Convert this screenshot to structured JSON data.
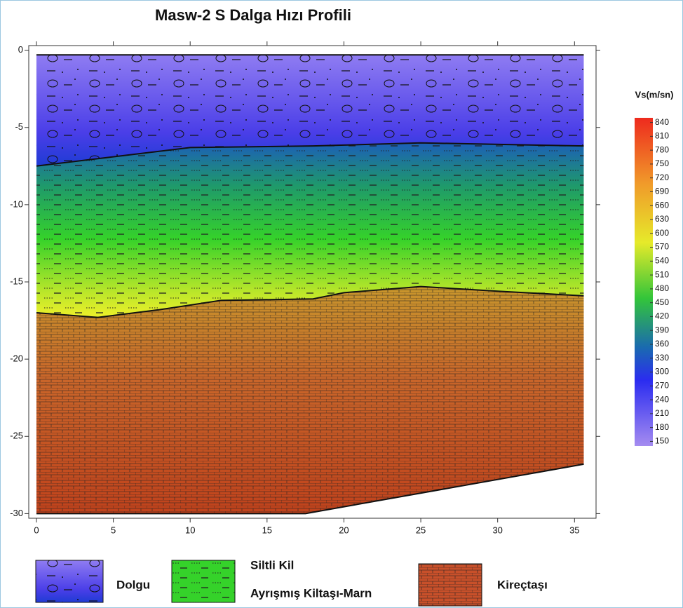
{
  "chart_data": {
    "type": "section",
    "title": "Masw-2 S Dalga Hızı Profili",
    "xlim": [
      -0.5,
      36.4
    ],
    "xticks": [
      0,
      5,
      10,
      15,
      20,
      25,
      30,
      35
    ],
    "ylim": [
      -30.3,
      0.3
    ],
    "yticks": [
      0,
      -5,
      -10,
      -15,
      -20,
      -25,
      -30
    ],
    "boundaries": [
      {
        "x": [
          0,
          35.6
        ],
        "y": [
          -0.3,
          -0.3
        ]
      },
      {
        "x": [
          0,
          10,
          18,
          25,
          35.6
        ],
        "y": [
          -7.5,
          -6.3,
          -6.2,
          -6.0,
          -6.2
        ]
      },
      {
        "x": [
          0,
          4,
          8,
          12,
          18,
          20,
          25,
          30,
          35.6
        ],
        "y": [
          -17,
          -17.3,
          -16.8,
          -16.2,
          -16.1,
          -15.7,
          -15.3,
          -15.6,
          -15.9
        ]
      },
      {
        "x": [
          0,
          17.5,
          35.6
        ],
        "y": [
          -30,
          -30,
          -26.8
        ]
      }
    ],
    "colorbar": {
      "title": "Vs(m/sn)",
      "lim": [
        140,
        850
      ],
      "ticks": [
        840,
        810,
        780,
        750,
        720,
        690,
        660,
        630,
        600,
        570,
        540,
        510,
        480,
        450,
        420,
        390,
        360,
        330,
        300,
        270,
        240,
        210,
        180,
        150
      ]
    },
    "legend": [
      "Dolgu",
      "Siltli Kil",
      "Ayrışmış Kiltaşı-Marn",
      "Kireçtaşı"
    ]
  }
}
